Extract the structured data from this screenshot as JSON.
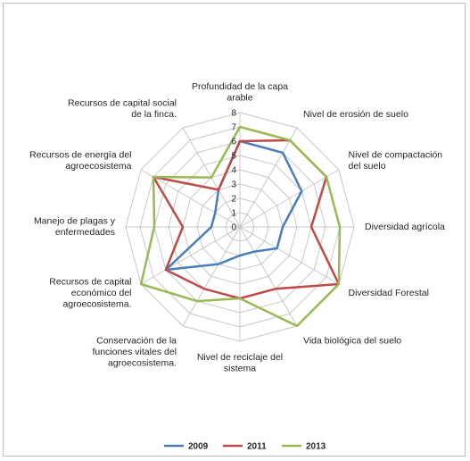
{
  "chart_data": {
    "type": "radar",
    "title": "",
    "categories": [
      "Profundidad de la capa arable",
      "Nivel de erosión de suelo",
      "Nivel de compactación del suelo",
      "Diversidad agrícola",
      "Diversidad Forestal",
      "Vida biológica del suelo",
      "Nivel de reciclaje del sistema",
      "Conservación de la funciones vitales del agroecosistema.",
      "Recursos de capital económico del agroecosistema.",
      "Manejo de plagas y enfermedades",
      "Recursos de energía del agroecosistema",
      "Recursos de capital social de la finca."
    ],
    "category_lines": [
      [
        "Profundidad de la capa",
        "arable"
      ],
      [
        "Nivel de erosión de suelo"
      ],
      [
        "Nivel de compactación",
        "del suelo"
      ],
      [
        "Diversidad agrícola"
      ],
      [
        "Diversidad Forestal"
      ],
      [
        "Vida biológica del suelo"
      ],
      [
        "Nivel de reciclaje del",
        "sistema"
      ],
      [
        "Conservación de la",
        "funciones vitales del",
        "agroecosistema."
      ],
      [
        "Recursos de capital",
        "económico del",
        "agroecosistema."
      ],
      [
        "Manejo de plagas y",
        "enfermedades"
      ],
      [
        "Recursos de energía del",
        "agroecosistema"
      ],
      [
        "Recursos de capital social",
        "de la finca."
      ]
    ],
    "rmin": 0,
    "rmax": 8,
    "ticks": [
      "0",
      "1",
      "2",
      "3",
      "4",
      "5",
      "6",
      "7",
      "8"
    ],
    "series": [
      {
        "name": "2009",
        "color": "#4a7ebb",
        "values": [
          6,
          6,
          5,
          3,
          3,
          2,
          2,
          3,
          6,
          2,
          2,
          3
        ]
      },
      {
        "name": "2011",
        "color": "#be4b48",
        "values": [
          6,
          7,
          7,
          5,
          8,
          5,
          5,
          5,
          6,
          4,
          7,
          3
        ]
      },
      {
        "name": "2013",
        "color": "#98b954",
        "values": [
          7,
          7,
          7,
          7,
          8,
          8,
          5,
          6,
          8,
          6,
          7,
          4
        ]
      }
    ],
    "legend_position": "bottom",
    "grid": true
  }
}
